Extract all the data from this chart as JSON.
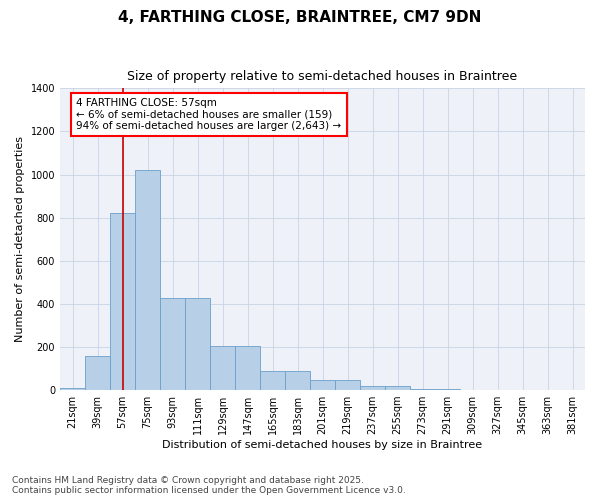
{
  "title": "4, FARTHING CLOSE, BRAINTREE, CM7 9DN",
  "subtitle": "Size of property relative to semi-detached houses in Braintree",
  "xlabel": "Distribution of semi-detached houses by size in Braintree",
  "ylabel": "Number of semi-detached properties",
  "categories": [
    "21sqm",
    "39sqm",
    "57sqm",
    "75sqm",
    "93sqm",
    "111sqm",
    "129sqm",
    "147sqm",
    "165sqm",
    "183sqm",
    "201sqm",
    "219sqm",
    "237sqm",
    "255sqm",
    "273sqm",
    "291sqm",
    "309sqm",
    "327sqm",
    "345sqm",
    "363sqm",
    "381sqm"
  ],
  "values": [
    10,
    160,
    820,
    1020,
    425,
    425,
    205,
    205,
    90,
    90,
    45,
    45,
    18,
    18,
    5,
    5,
    1,
    1,
    0,
    0,
    0
  ],
  "bar_color": "#b8cfe8",
  "bar_edge_color": "#6a9fcb",
  "grid_color": "#c8d4e4",
  "background_color": "#eef2f8",
  "annotation_box_text": "4 FARTHING CLOSE: 57sqm\n← 6% of semi-detached houses are smaller (159)\n94% of semi-detached houses are larger (2,643) →",
  "vline_x_index": 2,
  "vline_color": "#cc0000",
  "ylim": [
    0,
    1400
  ],
  "yticks": [
    0,
    200,
    400,
    600,
    800,
    1000,
    1200,
    1400
  ],
  "footnote": "Contains HM Land Registry data © Crown copyright and database right 2025.\nContains public sector information licensed under the Open Government Licence v3.0.",
  "title_fontsize": 11,
  "subtitle_fontsize": 9,
  "axis_label_fontsize": 8,
  "tick_fontsize": 7,
  "annotation_fontsize": 7.5,
  "footnote_fontsize": 6.5
}
